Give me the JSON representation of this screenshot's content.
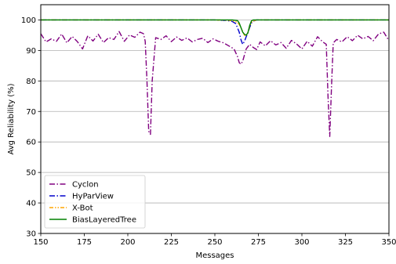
{
  "chart_data": {
    "type": "line",
    "xlabel": "Messages",
    "ylabel": "Avg Reliability (%)",
    "xlim": [
      150,
      350
    ],
    "ylim": [
      30,
      105
    ],
    "xticks": [
      150,
      175,
      200,
      225,
      250,
      275,
      300,
      325,
      350
    ],
    "yticks": [
      30,
      40,
      50,
      60,
      70,
      80,
      90,
      100
    ],
    "grid": "horizontal",
    "legend_position": "bottom-left",
    "series": [
      {
        "name": "Cyclon",
        "color": "#800080",
        "dash": "dashdot",
        "x": [
          150,
          153,
          156,
          159,
          162,
          165,
          168,
          171,
          174,
          177,
          180,
          183,
          186,
          189,
          192,
          195,
          198,
          201,
          204,
          207,
          209,
          210,
          211,
          212,
          213,
          214,
          216,
          219,
          222,
          225,
          228,
          231,
          234,
          237,
          240,
          243,
          246,
          249,
          252,
          255,
          258,
          261,
          263,
          264,
          265,
          266,
          267,
          268,
          270,
          272,
          274,
          276,
          279,
          282,
          285,
          288,
          291,
          294,
          297,
          300,
          303,
          306,
          309,
          312,
          314,
          315,
          316,
          317,
          318,
          320,
          323,
          326,
          329,
          332,
          335,
          338,
          341,
          344,
          347,
          350
        ],
        "y": [
          95.5,
          92.8,
          93.8,
          93.0,
          95.4,
          92.5,
          94.6,
          92.9,
          90.5,
          94.8,
          93.1,
          95.3,
          92.6,
          94.2,
          93.6,
          96.2,
          93.0,
          95.1,
          94.3,
          96.0,
          95.5,
          93.0,
          80.0,
          63.5,
          62.5,
          80.0,
          94.2,
          93.6,
          94.8,
          92.9,
          94.4,
          93.3,
          94.1,
          92.8,
          93.6,
          94.0,
          92.6,
          93.8,
          93.0,
          92.5,
          91.5,
          90.5,
          88.0,
          86.0,
          85.5,
          86.5,
          88.5,
          90.5,
          92.0,
          91.0,
          90.3,
          92.8,
          91.5,
          93.2,
          91.8,
          92.6,
          90.7,
          93.3,
          92.1,
          90.5,
          93.0,
          91.4,
          94.5,
          92.8,
          92.0,
          75.0,
          61.8,
          78.0,
          92.5,
          93.6,
          92.8,
          94.5,
          93.2,
          95.0,
          93.8,
          94.6,
          93.2,
          95.4,
          96.0,
          93.2
        ]
      },
      {
        "name": "HyParView",
        "color": "#0000cc",
        "dash": "dashdot",
        "x": [
          150,
          200,
          250,
          257,
          260,
          262,
          264,
          265,
          266,
          267,
          268,
          269,
          270,
          271,
          272,
          274,
          280,
          300,
          350
        ],
        "y": [
          100,
          100,
          100,
          99.8,
          99.5,
          98.8,
          96.0,
          93.5,
          92.0,
          93.0,
          94.5,
          95.8,
          97.5,
          99.0,
          99.6,
          100,
          100,
          100,
          100
        ]
      },
      {
        "name": "X-Bot",
        "color": "#ffa500",
        "dash": "dashdotdot",
        "x": [
          150,
          200,
          250,
          258,
          261,
          263,
          264,
          265,
          266,
          267,
          268,
          269,
          270,
          271,
          272,
          274,
          280,
          300,
          350
        ],
        "y": [
          100,
          100,
          100,
          99.9,
          99.6,
          99.2,
          98.5,
          97.5,
          96.2,
          95.0,
          94.8,
          96.0,
          97.8,
          99.2,
          99.7,
          100,
          100,
          100,
          100
        ]
      },
      {
        "name": "BiasLayeredTree",
        "color": "#008000",
        "dash": "solid",
        "x": [
          150,
          200,
          250,
          260,
          263,
          264,
          265,
          266,
          267,
          268,
          269,
          270,
          271,
          272,
          274,
          280,
          300,
          350
        ],
        "y": [
          100,
          100,
          100,
          100,
          99.8,
          99.0,
          97.5,
          96.0,
          95.3,
          95.0,
          95.8,
          98.2,
          99.7,
          100,
          100,
          100,
          100,
          100
        ]
      }
    ]
  }
}
